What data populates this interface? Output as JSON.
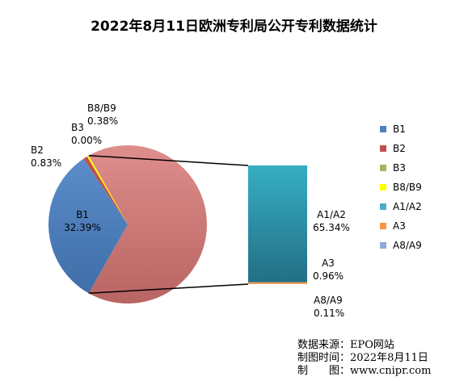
{
  "chart_data": {
    "type": "pie",
    "title": "2022年8月11日欧洲专利局公开专利数据统计",
    "slices": [
      {
        "name": "B1",
        "label_name": "B1",
        "label_value": "32.39%",
        "value": 32.39,
        "color": "#4F81BD"
      },
      {
        "name": "B2",
        "label_name": "B2",
        "label_value": "0.83%",
        "value": 0.83,
        "color": "#C0504D"
      },
      {
        "name": "B3",
        "label_name": "B3",
        "label_value": "0.00%",
        "value": 0.0,
        "color": "#9BBB59"
      },
      {
        "name": "B8/B9",
        "label_name": "B8/B9",
        "label_value": "0.38%",
        "value": 0.38,
        "color": "#FFFF00"
      },
      {
        "name": "A1/A2",
        "label_name": "A1/A2",
        "label_value": "65.34%",
        "value": 65.34,
        "color": "#4BACC6"
      },
      {
        "name": "A3",
        "label_name": "A3",
        "label_value": "0.96%",
        "value": 0.96,
        "color": "#F79646"
      },
      {
        "name": "A8/A9",
        "label_name": "A8/A9",
        "label_value": "0.11%",
        "value": 0.11,
        "color": "#8EA9DB"
      }
    ],
    "pie_main_slices": [
      "B1",
      "B2",
      "B3",
      "B8/B9"
    ],
    "pie_other_color": "#D98585",
    "bar_slices": [
      "A8/A9",
      "A3",
      "A1/A2"
    ],
    "legend_position": "right"
  },
  "footer": {
    "source": "数据来源：EPO网站",
    "date": "制图时间：2022年8月11日",
    "maker": "制　　图：www.cnipr.com"
  }
}
